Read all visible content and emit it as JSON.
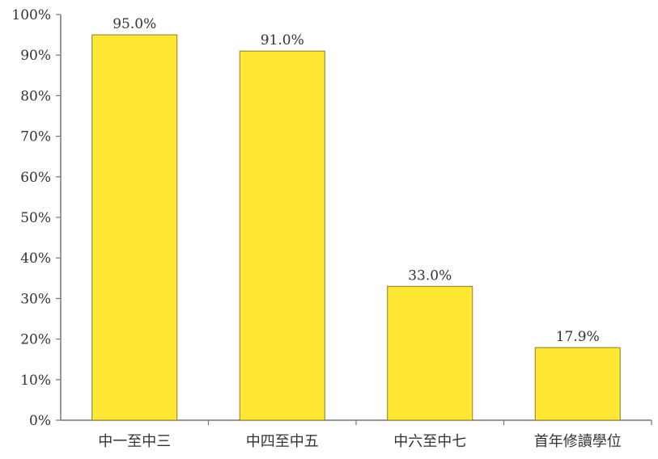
{
  "chart_data": {
    "type": "bar",
    "categories": [
      "中一至中三",
      "中四至中五",
      "中六至中七",
      "首年修讀學位"
    ],
    "values": [
      95.0,
      91.0,
      33.0,
      17.9
    ],
    "value_labels": [
      "95.0%",
      "91.0%",
      "33.0%",
      "17.9%"
    ],
    "title": "",
    "xlabel": "",
    "ylabel": "",
    "ylim": [
      0,
      100
    ],
    "yticks": [
      0,
      10,
      20,
      30,
      40,
      50,
      60,
      70,
      80,
      90,
      100
    ],
    "ytick_labels": [
      "0%",
      "10%",
      "20%",
      "30%",
      "40%",
      "50%",
      "60%",
      "70%",
      "80%",
      "90%",
      "100%"
    ],
    "grid": false,
    "legend": "none",
    "bar_color": "#FFE733",
    "bar_edge_color": "#8a7a2a",
    "axis_color": "#777777"
  }
}
